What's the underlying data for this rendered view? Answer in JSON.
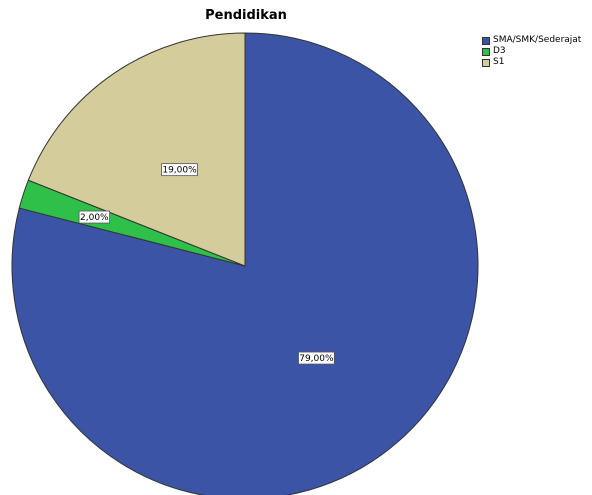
{
  "chart_data": {
    "type": "pie",
    "title": "Pendidikan",
    "categories": [
      "SMA/SMK/Sederajat",
      "D3",
      "S1"
    ],
    "values": [
      79.0,
      2.0,
      19.0
    ],
    "labels": [
      "79,00%",
      "2,00%",
      "19,00%"
    ],
    "colors": [
      "#3b54a6",
      "#2fc04a",
      "#d4cc9a"
    ],
    "start": "12 o'clock",
    "direction": "clockwise",
    "legend_position": "top-right"
  }
}
